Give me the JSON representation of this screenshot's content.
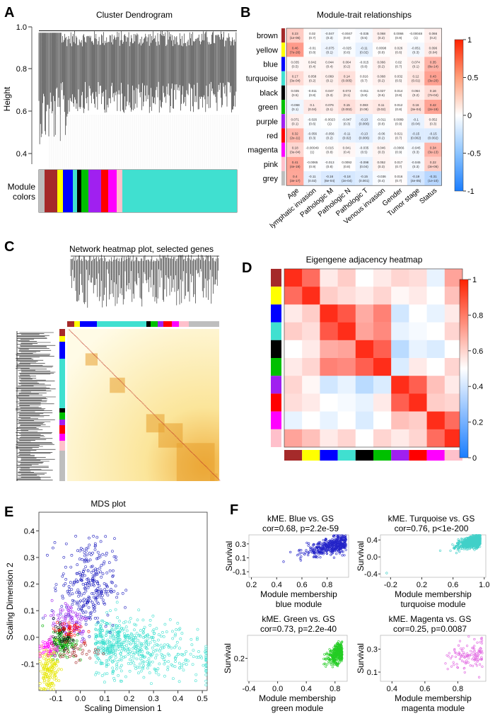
{
  "panels": {
    "A": {
      "label": "A",
      "title": "Cluster Dendrogram",
      "ylabel": "Height",
      "yticks": [
        "1.0",
        "0.8",
        "0.6",
        "0.4"
      ],
      "colors_label": [
        "Module",
        "colors"
      ]
    },
    "B": {
      "label": "B",
      "title": "Module-trait relationships"
    },
    "C": {
      "label": "C",
      "title": "Network heatmap plot, selected genes"
    },
    "D": {
      "label": "D",
      "title": "Eigengene adjacency heatmap"
    },
    "E": {
      "label": "E",
      "title": "MDS plot"
    },
    "F": {
      "label": "F"
    }
  },
  "chart_data": [
    {
      "id": "dendrogram",
      "type": "other",
      "title": "Cluster Dendrogram",
      "ylabel": "Height",
      "ylim": [
        0.3,
        1.0
      ],
      "module_color_bands": [
        "grey",
        "brown",
        "yellow",
        "blue",
        "turquoise",
        "black",
        "green",
        "purple",
        "red",
        "magenta",
        "pink",
        "turquoise"
      ]
    },
    {
      "id": "module_trait",
      "type": "heatmap",
      "title": "Module-trait relationships",
      "modules": [
        "brown",
        "yellow",
        "blue",
        "turquoise",
        "black",
        "green",
        "purple",
        "red",
        "magenta",
        "pink",
        "grey"
      ],
      "module_colors": [
        "#a52a2a",
        "#ffff00",
        "#0000ff",
        "#40e0d0",
        "#000000",
        "#00c000",
        "#a020f0",
        "#ff0000",
        "#ff00ff",
        "#ffc0cb",
        "#bebebe"
      ],
      "traits": [
        "Age",
        "lymphatic invasion",
        "Pathologic M",
        "Pathologic N",
        "Pathologic T",
        "Venous invasion",
        "Gender",
        "Tumor stage",
        "Status"
      ],
      "values": [
        [
          0.23,
          0.02,
          -0.047,
          -0.0047,
          -0.035,
          0.068,
          0.0066,
          -0.00048,
          0.066
        ],
        [
          0.46,
          -0.01,
          -0.075,
          -0.025,
          -0.11,
          0.0098,
          0.026,
          -0.051,
          0.096
        ],
        [
          0.035,
          0.042,
          0.044,
          0.064,
          -0.015,
          0.066,
          0.02,
          0.074,
          0.35
        ],
        [
          0.17,
          0.058,
          0.069,
          0.14,
          0.016,
          0.068,
          0.032,
          0.12,
          0.43
        ],
        [
          0.035,
          -0.011,
          0.047,
          0.073,
          -0.011,
          0.027,
          0.014,
          0.064,
          0.16
        ],
        [
          -0.068,
          0.1,
          0.076,
          0.15,
          0.083,
          0.11,
          0.012,
          0.16,
          0.42
        ],
        [
          0.071,
          -0.026,
          -0.0023,
          -0.047,
          -0.13,
          -0.011,
          0.0089,
          -0.1,
          0.052
        ],
        [
          0.32,
          -0.056,
          -0.056,
          -0.11,
          -0.13,
          -0.06,
          0.021,
          -0.15,
          -0.15
        ],
        [
          0.18,
          -0.00049,
          0.015,
          0.041,
          -0.035,
          0.046,
          -0.0066,
          -0.045,
          0.34
        ],
        [
          0.41,
          -0.0065,
          -0.013,
          0.0092,
          -0.098,
          0.052,
          0.017,
          -0.045,
          0.22
        ],
        [
          0.4,
          -0.11,
          -0.16,
          -0.18,
          -0.15,
          -0.036,
          0.016,
          -0.19,
          -0.31
        ]
      ],
      "pvalues": [
        [
          "(1e-06)",
          "(0.7)",
          "(0.3)",
          "(0.9)",
          "(0.5)",
          "(0.2)",
          "(0.9)",
          "(1)",
          "(0.2)"
        ],
        [
          "(7e-26)",
          "(0.8)",
          "(0.1)",
          "(0.6)",
          "(0.02)",
          "(0.8)",
          "(0.6)",
          "(0.3)",
          "(0.04)"
        ],
        [
          "(0.5)",
          "(0.4)",
          "(0.4)",
          "(0.2)",
          "(0.8)",
          "(0.2)",
          "(0.7)",
          "(0.1)",
          "(8e-14)"
        ],
        [
          "(3e-04)",
          "(0.2)",
          "(0.1)",
          "(0.005)",
          "(0.7)",
          "(0.2)",
          "(0.5)",
          "(0.01)",
          "(3e-20)"
        ],
        [
          "(0.5)",
          "(0.8)",
          "(0.3)",
          "(0.1)",
          "(0.8)",
          "(0.6)",
          "(0.8)",
          "(0.2)",
          "(7e-04)"
        ],
        [
          "(0.1)",
          "(0.04)",
          "(0.1)",
          "(0.002)",
          "(0.08)",
          "(0.02)",
          "(0.8)",
          "(3e-04)",
          "(2e-19)"
        ],
        [
          "(0.1)",
          "(0.6)",
          "(1)",
          "(0.3)",
          "(0.006)",
          "(0.8)",
          "(0.9)",
          "(0.04)",
          "(0.3)"
        ],
        [
          "(2e-11)",
          "(0.3)",
          "(0.2)",
          "(0.02)",
          "(0.006)",
          "(0.2)",
          "(0.7)",
          "(0.002)",
          "(0.002)"
        ],
        [
          "(3e-04)",
          "(1)",
          "(0.8)",
          "(0.4)",
          "(0.5)",
          "(0.3)",
          "(0.9)",
          "(0.3)",
          "(3e-13)"
        ],
        [
          "(4e-19)",
          "(0.9)",
          "(0.8)",
          "(0.8)",
          "(0.04)",
          "(0.3)",
          "(0.7)",
          "(0.3)",
          "(3e-06)"
        ],
        [
          "(3e-17)",
          "(0.02)",
          "(6e-04)",
          "(2e-04)",
          "(0.001)",
          "(0.4)",
          "(0.7)",
          "(4e-05)",
          "(1e-10)"
        ]
      ],
      "scale_ticks": [
        "1",
        "0.5",
        "0",
        "-0.5",
        "-1"
      ],
      "scale_range": [
        -1,
        1
      ]
    },
    {
      "id": "network_heatmap",
      "type": "heatmap",
      "title": "Network heatmap plot, selected genes",
      "module_blocks": [
        "brown",
        "yellow",
        "blue",
        "turquoise",
        "black",
        "green",
        "purple",
        "red",
        "magenta",
        "pink",
        "grey"
      ]
    },
    {
      "id": "eigengene_adjacency",
      "type": "heatmap",
      "title": "Eigengene adjacency heatmap",
      "modules": [
        "brown",
        "yellow",
        "blue",
        "turquoise",
        "black",
        "green",
        "purple",
        "red",
        "magenta",
        "pink"
      ],
      "module_colors": [
        "#a52a2a",
        "#ffff00",
        "#0000ff",
        "#40e0d0",
        "#000000",
        "#00c000",
        "#a020f0",
        "#ff0000",
        "#ff00ff",
        "#ffc0cb"
      ],
      "matrix": [
        [
          1.0,
          0.85,
          0.55,
          0.62,
          0.5,
          0.55,
          0.6,
          0.58,
          0.45,
          0.72
        ],
        [
          0.85,
          1.0,
          0.62,
          0.58,
          0.55,
          0.6,
          0.52,
          0.55,
          0.5,
          0.65
        ],
        [
          0.55,
          0.62,
          1.0,
          0.9,
          0.7,
          0.8,
          0.4,
          0.5,
          0.45,
          0.55
        ],
        [
          0.62,
          0.58,
          0.9,
          1.0,
          0.72,
          0.78,
          0.45,
          0.48,
          0.5,
          0.6
        ],
        [
          0.5,
          0.55,
          0.7,
          0.72,
          1.0,
          0.88,
          0.35,
          0.45,
          0.42,
          0.5
        ],
        [
          0.55,
          0.6,
          0.8,
          0.78,
          0.88,
          1.0,
          0.42,
          0.55,
          0.5,
          0.6
        ],
        [
          0.6,
          0.52,
          0.4,
          0.45,
          0.35,
          0.42,
          1.0,
          0.88,
          0.65,
          0.55
        ],
        [
          0.58,
          0.55,
          0.5,
          0.48,
          0.45,
          0.55,
          0.88,
          1.0,
          0.62,
          0.6
        ],
        [
          0.45,
          0.5,
          0.45,
          0.5,
          0.42,
          0.5,
          0.65,
          0.62,
          1.0,
          0.85
        ],
        [
          0.72,
          0.65,
          0.55,
          0.6,
          0.5,
          0.6,
          0.55,
          0.6,
          0.85,
          1.0
        ]
      ],
      "scale_ticks": [
        "1",
        "0.8",
        "0.6",
        "0.4",
        "0.2",
        "0"
      ],
      "scale_range": [
        0,
        1
      ]
    },
    {
      "id": "mds",
      "type": "scatter",
      "title": "MDS plot",
      "xlabel": "Scaling Dimension 1",
      "ylabel": "Scaling Dimension 2",
      "xlim": [
        -0.17,
        0.52
      ],
      "ylim": [
        -0.2,
        0.47
      ],
      "xticks": [
        "-0.1",
        "0.0",
        "0.1",
        "0.2",
        "0.3",
        "0.4",
        "0.5"
      ],
      "yticks": [
        "0.4",
        "0.3",
        "0.2",
        "0.1",
        "0.0",
        "-0.1"
      ],
      "clusters": [
        {
          "name": "turquoise",
          "color": "#40e0d0",
          "n": 560,
          "center": [
            0.16,
            -0.05
          ],
          "spread": [
            0.13,
            0.05
          ]
        },
        {
          "name": "blue",
          "color": "#2020c0",
          "n": 280,
          "center": [
            0.03,
            0.2
          ],
          "spread": [
            0.055,
            0.085
          ]
        },
        {
          "name": "purple",
          "color": "#a020f0",
          "n": 90,
          "center": [
            -0.04,
            0.06
          ],
          "spread": [
            0.04,
            0.04
          ]
        },
        {
          "name": "green",
          "color": "#00b000",
          "n": 110,
          "center": [
            -0.07,
            -0.02
          ],
          "spread": [
            0.025,
            0.03
          ]
        },
        {
          "name": "yellow",
          "color": "#e6e600",
          "n": 140,
          "center": [
            -0.13,
            -0.12
          ],
          "spread": [
            0.02,
            0.04
          ]
        },
        {
          "name": "magenta",
          "color": "#ff00ff",
          "n": 45,
          "center": [
            -0.13,
            -0.04
          ],
          "spread": [
            0.02,
            0.02
          ]
        },
        {
          "name": "brown",
          "color": "#a52a2a",
          "n": 40,
          "center": [
            -0.03,
            -0.05
          ],
          "spread": [
            0.05,
            0.02
          ]
        },
        {
          "name": "black",
          "color": "#111111",
          "n": 40,
          "center": [
            -0.07,
            0.0
          ],
          "spread": [
            0.02,
            0.02
          ]
        },
        {
          "name": "red",
          "color": "#ff0000",
          "n": 40,
          "center": [
            -0.05,
            0.03
          ],
          "spread": [
            0.03,
            0.02
          ]
        }
      ]
    },
    {
      "id": "kme_blue",
      "type": "scatter",
      "title": "kME. Blue vs. GS",
      "subtitle": "cor=0.68, p=2.2e-59",
      "xlabel": [
        "Module membership",
        "blue module"
      ],
      "ylabel": "Survival",
      "color": "#2323c8",
      "xlim": [
        0.18,
        0.97
      ],
      "ylim": [
        -0.18,
        0.43
      ],
      "xticks": [
        "0.2",
        "0.4",
        "0.6",
        "0.8"
      ],
      "xtick_vals": [
        0.2,
        0.4,
        0.6,
        0.8
      ],
      "yticks": [
        "0.3",
        "0.1",
        "-0.1"
      ],
      "ytick_vals": [
        0.3,
        0.1,
        -0.1
      ],
      "fit": {
        "x0": 0.3,
        "x1": 0.95,
        "slope": 0.45,
        "intercept": -0.1,
        "sx": 0.15,
        "sy": 0.06,
        "n": 420
      }
    },
    {
      "id": "kme_turquoise",
      "type": "scatter",
      "title": "kME. Turquoise vs. GS",
      "subtitle": "cor=0.76, p<1e-200",
      "xlabel": [
        "Module membership",
        "turquoise module"
      ],
      "ylabel": "Survival",
      "color": "#40d0c8",
      "xlim": [
        -0.33,
        1.02
      ],
      "ylim": [
        -0.48,
        0.52
      ],
      "xticks": [
        "-0.2",
        "0.2",
        "0.6",
        "1.0"
      ],
      "xtick_vals": [
        -0.2,
        0.2,
        0.6,
        1.0
      ],
      "yticks": [
        "0.4",
        "0.0",
        "-0.4"
      ],
      "ytick_vals": [
        0.4,
        0.0,
        -0.4
      ],
      "fit": {
        "x0": 0.3,
        "x1": 0.95,
        "slope": 0.35,
        "intercept": 0.05,
        "sx": 0.12,
        "sy": 0.06,
        "n": 900
      }
    },
    {
      "id": "kme_green",
      "type": "scatter",
      "title": "kME. Green vs. GS",
      "subtitle": "cor=0.73, p=2.2e-40",
      "xlabel": [
        "Module membership",
        "green module"
      ],
      "ylabel": "Survival",
      "color": "#22cc22",
      "xlim": [
        -0.42,
        0.97
      ],
      "ylim": [
        0.0,
        0.4
      ],
      "xticks": [
        "-0.4",
        "0.0",
        "0.4",
        "0.8"
      ],
      "xtick_vals": [
        -0.4,
        0.0,
        0.4,
        0.8
      ],
      "yticks": [
        "0.2"
      ],
      "ytick_vals": [
        0.2
      ],
      "fit": {
        "x0": 0.5,
        "x1": 0.9,
        "slope": 0.35,
        "intercept": -0.05,
        "sx": 0.1,
        "sy": 0.04,
        "n": 300
      }
    },
    {
      "id": "kme_magenta",
      "type": "scatter",
      "title": "kME. Magenta vs. GS",
      "subtitle": "cor=0.25, p=0.0087",
      "xlabel": [
        "Module membership",
        "magenta module"
      ],
      "ylabel": "Survival",
      "color": "#e060e0",
      "xlim": [
        0.33,
        0.97
      ],
      "ylim": [
        0.02,
        0.42
      ],
      "xticks": [
        "0.4",
        "0.6",
        "0.8"
      ],
      "xtick_vals": [
        0.4,
        0.6,
        0.8
      ],
      "yticks": [
        "0.3",
        "0.1"
      ],
      "ytick_vals": [
        0.3,
        0.1
      ],
      "fit": {
        "x0": 0.55,
        "x1": 0.95,
        "slope": 0.12,
        "intercept": 0.15,
        "sx": 0.1,
        "sy": 0.07,
        "n": 110
      }
    }
  ]
}
